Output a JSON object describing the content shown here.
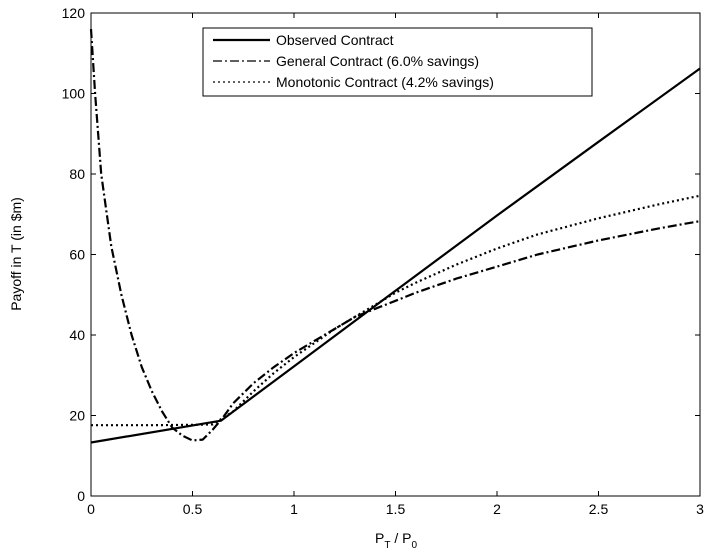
{
  "chart_data": {
    "type": "line",
    "xlabel": "P",
    "xlabel_sub1": "T",
    "xlabel_mid": " / P",
    "xlabel_sub2": "0",
    "ylabel": "Payoff in T (in $m)",
    "xlim": [
      0,
      3
    ],
    "ylim": [
      0,
      120
    ],
    "xticks": [
      0,
      0.5,
      1,
      1.5,
      2,
      2.5,
      3
    ],
    "xtick_labels": [
      "0",
      "0.5",
      "1",
      "1.5",
      "2",
      "2.5",
      "3"
    ],
    "yticks": [
      0,
      20,
      40,
      60,
      80,
      100,
      120
    ],
    "ytick_labels": [
      "0",
      "20",
      "40",
      "60",
      "80",
      "100",
      "120"
    ],
    "grid": false,
    "legend_position": "top-center",
    "series": [
      {
        "name": "Observed Contract",
        "style": "solid",
        "color": "#000000",
        "x": [
          0,
          0.64,
          1.0,
          1.5,
          2.0,
          2.5,
          3.0
        ],
        "y": [
          13.3,
          18.7,
          32.2,
          51.0,
          69.7,
          88.0,
          106.2
        ]
      },
      {
        "name": "General Contract (6.0% savings)",
        "style": "dashdot",
        "color": "#000000",
        "x": [
          0.0,
          0.02,
          0.05,
          0.1,
          0.15,
          0.2,
          0.25,
          0.3,
          0.35,
          0.4,
          0.45,
          0.5,
          0.55,
          0.6,
          0.65,
          0.7,
          0.8,
          0.9,
          1.0,
          1.1,
          1.2,
          1.3,
          1.4,
          1.5,
          1.6,
          1.8,
          2.0,
          2.2,
          2.5,
          2.8,
          3.0
        ],
        "y": [
          116,
          100,
          80,
          62,
          50,
          40,
          32,
          26,
          21,
          17,
          15,
          13.8,
          14.0,
          16.5,
          19.5,
          23,
          28,
          32,
          35.5,
          38.5,
          41.5,
          44.5,
          46.5,
          48.5,
          50.5,
          54.0,
          57.0,
          60.0,
          63.5,
          66.5,
          68.3
        ]
      },
      {
        "name": "Monotonic Contract (4.2% savings)",
        "style": "dotted",
        "color": "#000000",
        "x": [
          0.0,
          0.3,
          0.5,
          0.6,
          0.7,
          0.8,
          0.9,
          1.0,
          1.1,
          1.2,
          1.3,
          1.4,
          1.5,
          1.6,
          1.8,
          2.0,
          2.2,
          2.5,
          2.8,
          3.0
        ],
        "y": [
          17.6,
          17.6,
          17.7,
          17.8,
          21.0,
          26.0,
          30.5,
          34.5,
          38.0,
          41.5,
          44.5,
          47.5,
          50.5,
          53.0,
          57.5,
          61.5,
          65.0,
          69.0,
          72.5,
          74.6
        ]
      }
    ]
  }
}
